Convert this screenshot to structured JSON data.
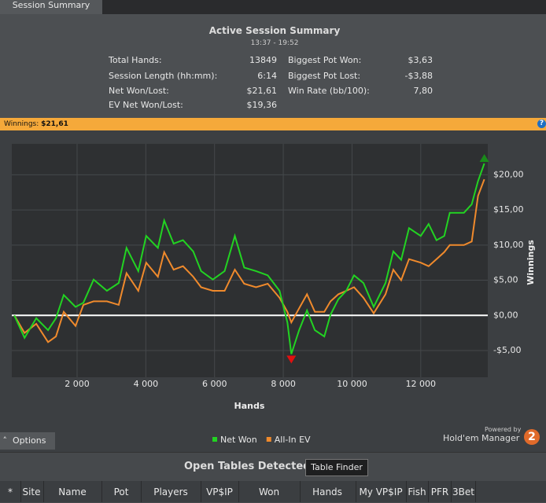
{
  "tab": "Session Summary",
  "summary": {
    "title": "Active Session Summary",
    "time": "13:37 - 19:52",
    "left": [
      [
        "Total Hands:",
        "13849"
      ],
      [
        "Session Length (hh:mm):",
        "6:14"
      ],
      [
        "Net Won/Lost:",
        "$21,61"
      ],
      [
        "EV Net Won/Lost:",
        "$19,36"
      ]
    ],
    "right": [
      [
        "Biggest Pot Won:",
        "$3,63"
      ],
      [
        "Biggest Pot Lost:",
        "-$3,88"
      ],
      [
        "Win Rate (bb/100):",
        "7,80"
      ]
    ]
  },
  "winnings_bar": {
    "label": "Winnings:",
    "value": "$21,61"
  },
  "chart_data": {
    "type": "line",
    "xlabel": "Hands",
    "ylabel": "Winnings",
    "x": [
      173,
      470,
      813,
      1155,
      1384,
      1612,
      1954,
      2183,
      2480,
      2868,
      3210,
      3438,
      3781,
      4009,
      4352,
      4534,
      4808,
      5082,
      5379,
      5607,
      5950,
      6292,
      6589,
      6863,
      7205,
      7548,
      7890,
      8119,
      8233,
      8461,
      8689,
      8918,
      9192,
      9374,
      9603,
      9831,
      10059,
      10333,
      10630,
      10973,
      11201,
      11429,
      11658,
      12000,
      12228,
      12457,
      12685,
      12845,
      13256,
      13484,
      13667,
      13849
    ],
    "series": [
      {
        "name": "Net Won",
        "color": "#22d322",
        "values": [
          0,
          -3.2,
          -0.4,
          -2.1,
          -0.4,
          2.9,
          1.2,
          1.8,
          5.1,
          3.5,
          4.6,
          9.6,
          6.3,
          11.3,
          9.6,
          13.5,
          10.2,
          10.7,
          9.1,
          6.3,
          5.1,
          6.3,
          11.3,
          6.8,
          6.3,
          5.7,
          3.5,
          -1.0,
          -5.5,
          -2.1,
          0.7,
          -2.1,
          -3.0,
          0.1,
          2.3,
          3.5,
          5.7,
          4.6,
          1.2,
          4.6,
          9.1,
          7.9,
          12.4,
          11.3,
          13.0,
          10.7,
          11.3,
          14.6,
          14.6,
          15.8,
          19.1,
          21.61
        ]
      },
      {
        "name": "All-In EV",
        "color": "#f08a2c",
        "values": [
          0,
          -2.5,
          -1.2,
          -3.8,
          -3.0,
          0.5,
          -1.5,
          1.5,
          2.0,
          2.0,
          1.5,
          6.0,
          3.5,
          7.5,
          5.5,
          9.0,
          6.5,
          7.0,
          5.5,
          4.0,
          3.5,
          3.5,
          6.5,
          4.5,
          4.0,
          4.5,
          2.5,
          0.5,
          -1.0,
          1.0,
          3.0,
          0.5,
          0.5,
          2.0,
          3.0,
          3.5,
          4.0,
          2.5,
          0.3,
          3.0,
          6.5,
          5.0,
          8.0,
          7.5,
          7.0,
          8.0,
          9.0,
          10.0,
          10.0,
          10.5,
          17.0,
          19.36
        ]
      }
    ],
    "xlim": [
      100,
      13950
    ],
    "ylim": [
      -8.8,
      24.4
    ],
    "xticks": [
      {
        "value": 2000,
        "label": "2 000"
      },
      {
        "value": 4000,
        "label": "4 000"
      },
      {
        "value": 6000,
        "label": "6 000"
      },
      {
        "value": 8000,
        "label": "8 000"
      },
      {
        "value": 10000,
        "label": "10 000"
      },
      {
        "value": 12000,
        "label": "12 000"
      }
    ],
    "yticks": [
      {
        "value": -5,
        "label": "-$5,00"
      },
      {
        "value": 0,
        "label": "$0,00"
      },
      {
        "value": 5,
        "label": "$5,00"
      },
      {
        "value": 10,
        "label": "$10,00"
      },
      {
        "value": 15,
        "label": "$15,00"
      },
      {
        "value": 20,
        "label": "$20,00"
      }
    ],
    "grid": true,
    "legend": "bottom"
  },
  "options": "Options",
  "powered_by": "Powered by",
  "brand": "Hold'em Manager",
  "brand_badge": "2",
  "tables": {
    "title": "Open Tables Detected",
    "button": "Table Finder",
    "columns": [
      "*",
      "Site",
      "Name",
      "Pot",
      "Players",
      "VP$IP",
      "Won",
      "Hands",
      "My VP$IP",
      "Fish",
      "PFR",
      "3Bet"
    ]
  }
}
